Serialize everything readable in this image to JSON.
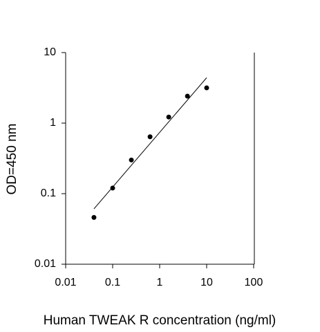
{
  "chart_data": {
    "type": "scatter",
    "x_label": "Human TWEAK R concentration (ng/ml)",
    "y_label": "OD=450 nm",
    "x_log": true,
    "y_log": true,
    "xlim": [
      0.01,
      100
    ],
    "ylim": [
      0.01,
      10
    ],
    "xticks": [
      0.01,
      0.1,
      1,
      10,
      100
    ],
    "yticks": [
      0.01,
      0.1,
      1,
      10
    ],
    "series": [
      {
        "color": "#000000",
        "x": [
          0.04,
          0.1,
          0.25,
          0.625,
          1.56,
          3.9,
          10
        ],
        "values": [
          0.046,
          0.12,
          0.3,
          0.64,
          1.22,
          2.41,
          3.16
        ]
      },
      {
        "type": "line",
        "color": "#000000",
        "x": [
          0.04,
          10
        ],
        "values": [
          0.061,
          4.4
        ]
      }
    ]
  }
}
